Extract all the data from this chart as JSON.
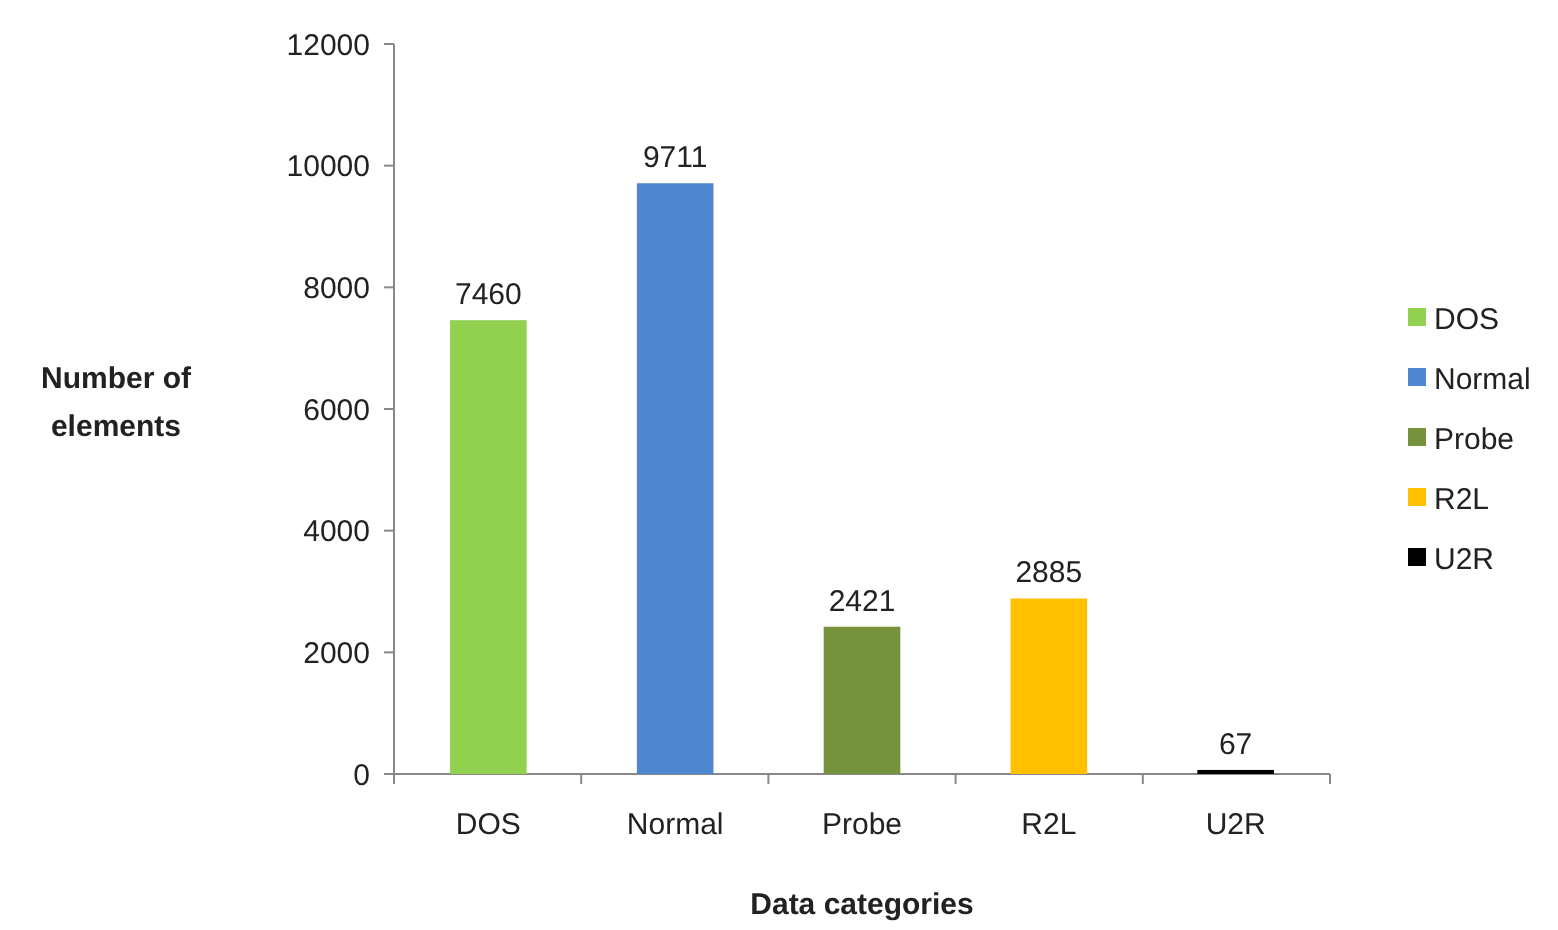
{
  "chart_data": {
    "type": "bar",
    "xlabel": "Data categories",
    "ylabel": "Number of elements",
    "categories": [
      "DOS",
      "Normal",
      "Probe",
      "R2L",
      "U2R"
    ],
    "series": [
      {
        "name": "DOS",
        "color": "#92d050",
        "values": [
          7460,
          null,
          null,
          null,
          null
        ]
      },
      {
        "name": "Normal",
        "color": "#4f86d0",
        "values": [
          null,
          9711,
          null,
          null,
          null
        ]
      },
      {
        "name": "Probe",
        "color": "#76923c",
        "values": [
          null,
          null,
          2421,
          null,
          null
        ]
      },
      {
        "name": "R2L",
        "color": "#ffc000",
        "values": [
          null,
          null,
          null,
          2885,
          null
        ]
      },
      {
        "name": "U2R",
        "color": "#000000",
        "values": [
          null,
          null,
          null,
          null,
          67
        ]
      }
    ],
    "stacked": true,
    "ylim": [
      0,
      12000
    ],
    "yticks": [
      0,
      2000,
      4000,
      6000,
      8000,
      10000,
      12000
    ],
    "data_labels": true,
    "legend": "right",
    "grid": false
  }
}
